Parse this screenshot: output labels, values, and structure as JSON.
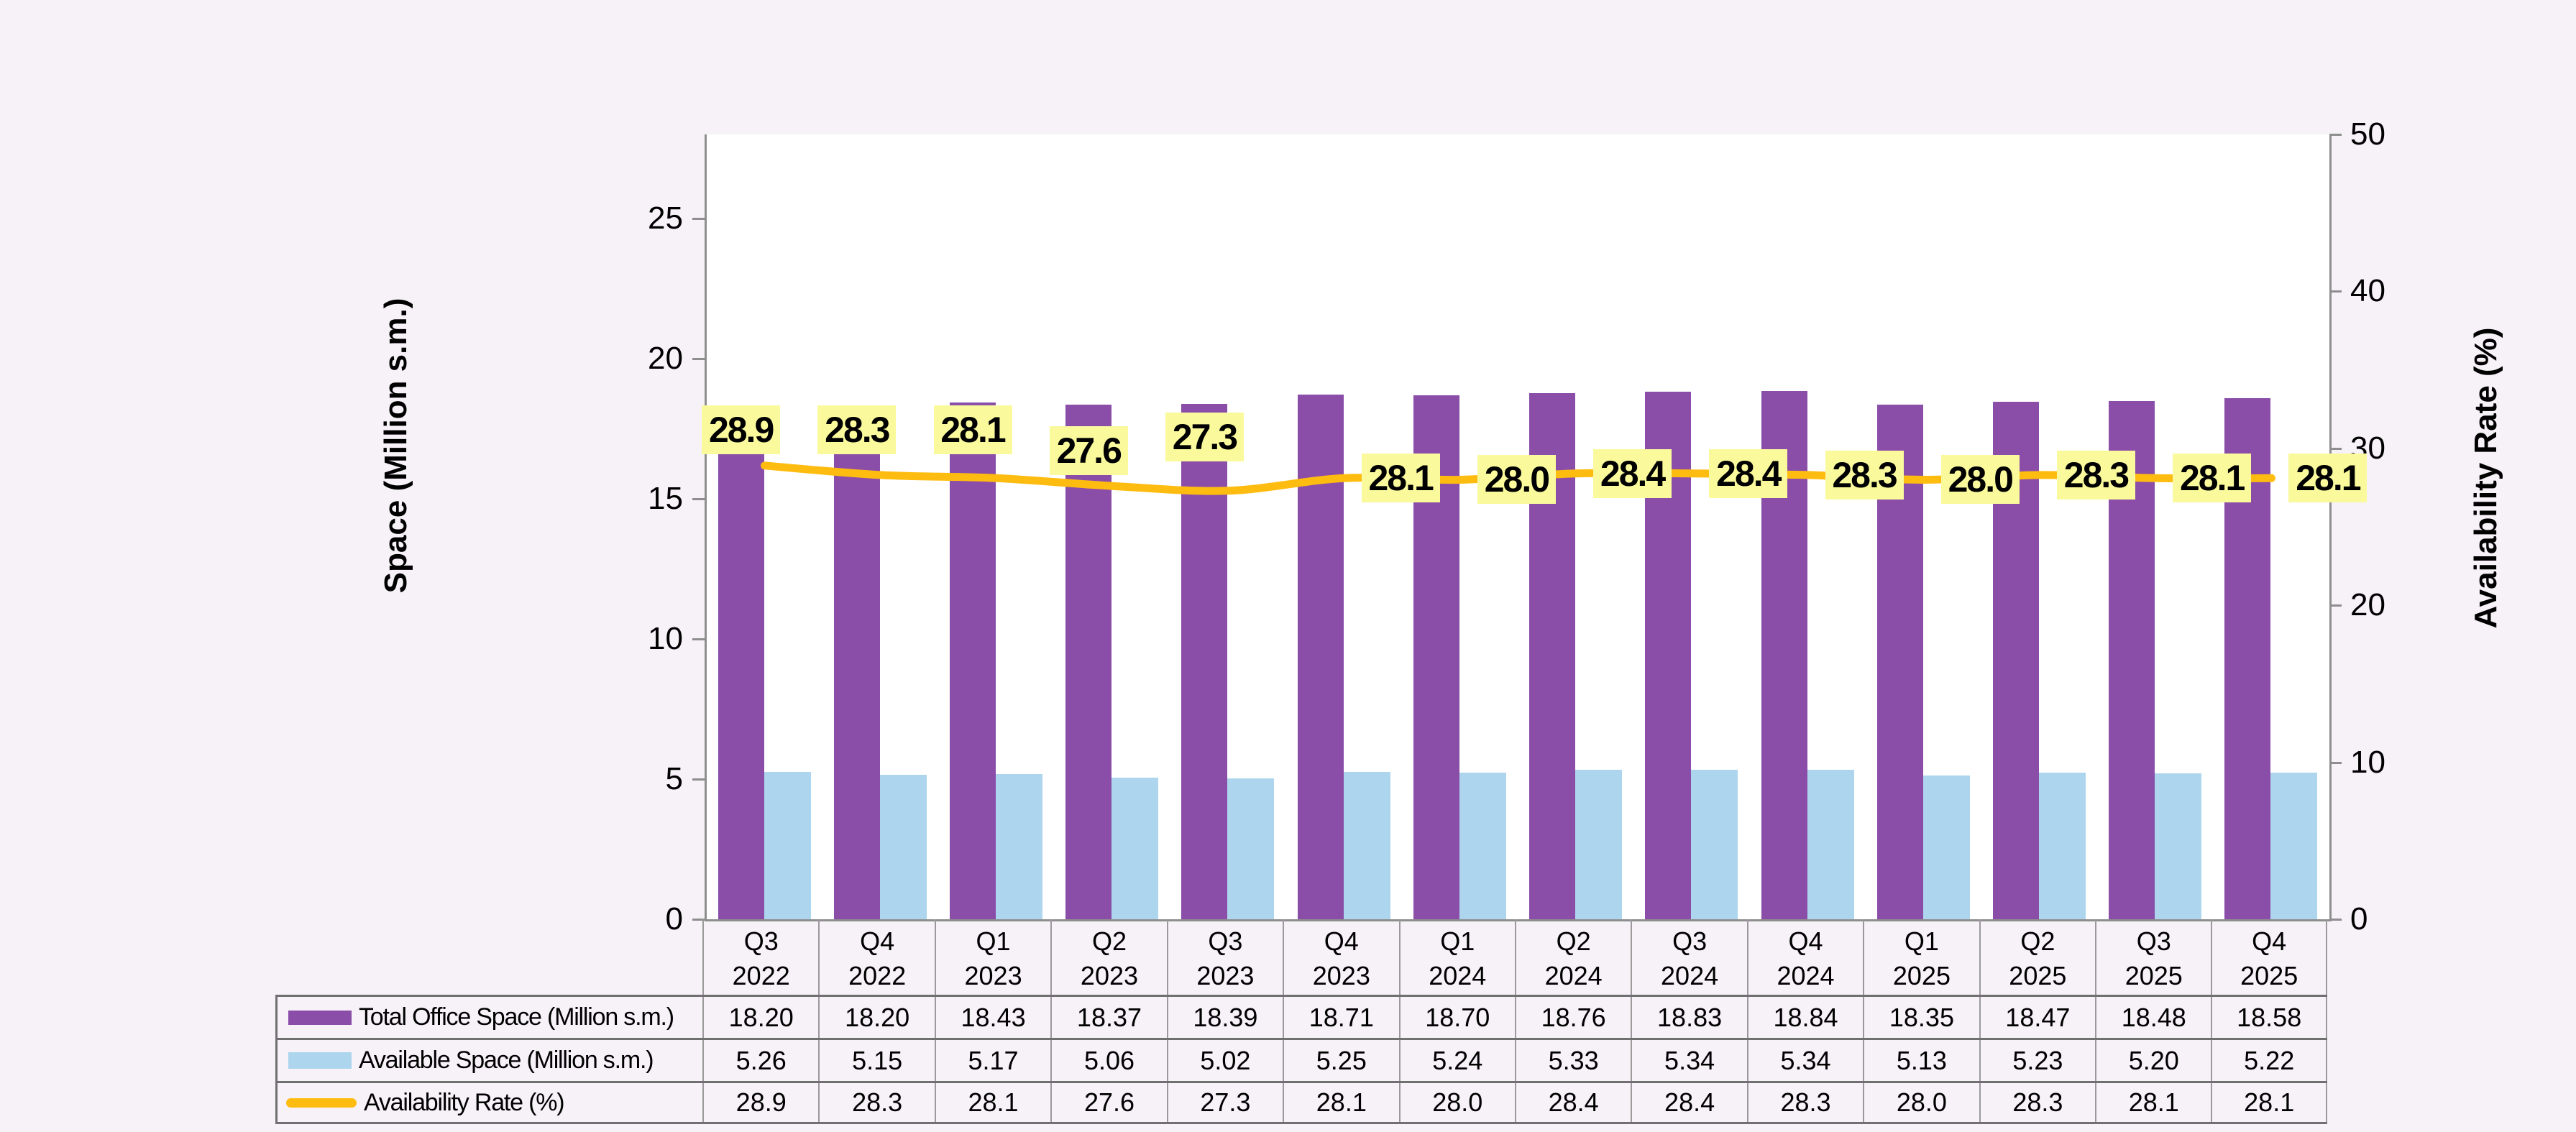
{
  "chart_data": {
    "type": "combo-bar-line",
    "categories": [
      {
        "quarter": "Q3",
        "year": "2022"
      },
      {
        "quarter": "Q4",
        "year": "2022"
      },
      {
        "quarter": "Q1",
        "year": "2023"
      },
      {
        "quarter": "Q2",
        "year": "2023"
      },
      {
        "quarter": "Q3",
        "year": "2023"
      },
      {
        "quarter": "Q4",
        "year": "2023"
      },
      {
        "quarter": "Q1",
        "year": "2024"
      },
      {
        "quarter": "Q2",
        "year": "2024"
      },
      {
        "quarter": "Q3",
        "year": "2024"
      },
      {
        "quarter": "Q4",
        "year": "2024"
      },
      {
        "quarter": "Q1",
        "year": "2025"
      },
      {
        "quarter": "Q2",
        "year": "2025"
      },
      {
        "quarter": "Q3",
        "year": "2025"
      },
      {
        "quarter": "Q4",
        "year": "2025"
      }
    ],
    "series": [
      {
        "name": "Total Office Space (Million s.m.)",
        "type": "bar",
        "axis": "left",
        "color": "#8A4DA8",
        "decimals": 2,
        "values": [
          18.2,
          18.2,
          18.43,
          18.37,
          18.39,
          18.71,
          18.7,
          18.76,
          18.83,
          18.84,
          18.35,
          18.47,
          18.48,
          18.58
        ]
      },
      {
        "name": "Available Space (Million s.m.)",
        "type": "bar",
        "axis": "left",
        "color": "#ADD6EE",
        "decimals": 2,
        "values": [
          5.26,
          5.15,
          5.17,
          5.06,
          5.02,
          5.25,
          5.24,
          5.33,
          5.34,
          5.34,
          5.13,
          5.23,
          5.2,
          5.22
        ]
      },
      {
        "name": "Availability Rate (%)",
        "type": "line",
        "axis": "right",
        "color": "#FFBC10",
        "label_background": "#FAFA9D",
        "decimals": 1,
        "values": [
          28.9,
          28.3,
          28.1,
          27.6,
          27.3,
          28.1,
          28.0,
          28.4,
          28.4,
          28.3,
          28.0,
          28.3,
          28.1,
          28.1
        ]
      }
    ],
    "left_axis": {
      "title": "Space (Million s.m.)",
      "ticks": [
        0,
        5,
        10,
        15,
        20,
        25
      ],
      "max": 28
    },
    "right_axis": {
      "title": "Availability Rate (%)",
      "ticks": [
        0,
        10,
        20,
        30,
        40,
        50
      ],
      "max": 50
    },
    "legend_position": "table-left",
    "grid": false
  },
  "colors": {
    "background": "#F7F1F8",
    "plot_background": "#FFFFFF",
    "axis_line": "#8E8E8E",
    "table_border_horizontal": "#707070",
    "table_border_vertical": "#9A9A9A",
    "text": "#000000"
  }
}
